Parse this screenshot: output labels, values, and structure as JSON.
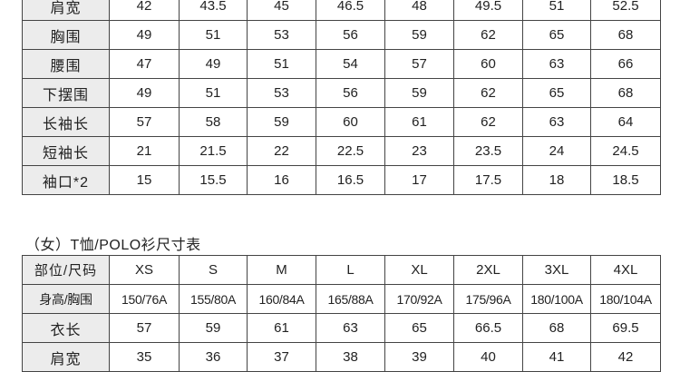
{
  "men_table": {
    "rows": [
      {
        "label": "肩宽",
        "values": [
          "42",
          "43.5",
          "45",
          "46.5",
          "48",
          "49.5",
          "51",
          "52.5"
        ]
      },
      {
        "label": "胸围",
        "values": [
          "49",
          "51",
          "53",
          "56",
          "59",
          "62",
          "65",
          "68"
        ]
      },
      {
        "label": "腰围",
        "values": [
          "47",
          "49",
          "51",
          "54",
          "57",
          "60",
          "63",
          "66"
        ]
      },
      {
        "label": "下摆围",
        "values": [
          "49",
          "51",
          "53",
          "56",
          "59",
          "62",
          "65",
          "68"
        ]
      },
      {
        "label": "长袖长",
        "values": [
          "57",
          "58",
          "59",
          "60",
          "61",
          "62",
          "63",
          "64"
        ]
      },
      {
        "label": "短袖长",
        "values": [
          "21",
          "21.5",
          "22",
          "22.5",
          "23",
          "23.5",
          "24",
          "24.5"
        ]
      },
      {
        "label": "袖口*2",
        "values": [
          "15",
          "15.5",
          "16",
          "16.5",
          "17",
          "17.5",
          "18",
          "18.5"
        ]
      }
    ]
  },
  "women_table": {
    "title": "（女）T恤/POLO衫尺寸表",
    "header_label": "部位/尺码",
    "sizes": [
      "XS",
      "S",
      "M",
      "L",
      "XL",
      "2XL",
      "3XL",
      "4XL"
    ],
    "rows": [
      {
        "label": "身高/胸围",
        "values": [
          "150/76A",
          "155/80A",
          "160/84A",
          "165/88A",
          "170/92A",
          "175/96A",
          "180/100A",
          "180/104A"
        ]
      },
      {
        "label": "衣长",
        "values": [
          "57",
          "59",
          "61",
          "63",
          "65",
          "66.5",
          "68",
          "69.5"
        ]
      },
      {
        "label": "肩宽",
        "values": [
          "35",
          "36",
          "37",
          "38",
          "39",
          "40",
          "41",
          "42"
        ]
      }
    ]
  }
}
